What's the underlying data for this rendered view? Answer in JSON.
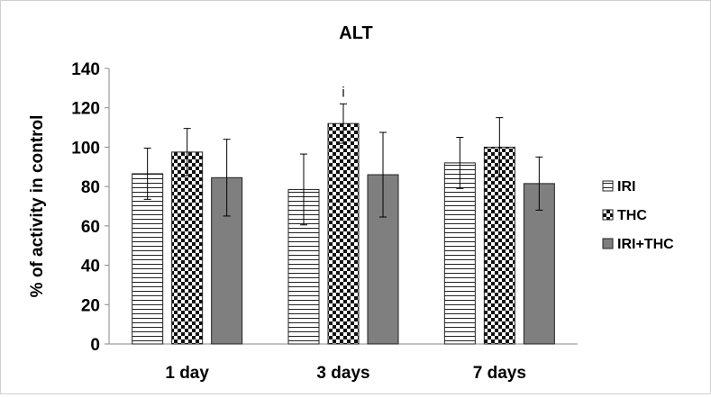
{
  "chart_data": {
    "type": "bar",
    "title": "ALT",
    "xlabel": "",
    "ylabel": "% of activity in control",
    "categories": [
      "1 day",
      "3 days",
      "7 days"
    ],
    "ylim": [
      0,
      140
    ],
    "yticks": [
      0,
      20,
      40,
      60,
      80,
      100,
      120,
      140
    ],
    "grid": false,
    "legend_position": "right",
    "series": [
      {
        "name": "IRI",
        "pattern": "horizontal-lines",
        "color": "#ffffff",
        "values": [
          86.5,
          78.5,
          92
        ],
        "errors": [
          13,
          18,
          13
        ]
      },
      {
        "name": "THC",
        "pattern": "checkerboard",
        "color": "#111111",
        "values": [
          97.5,
          112,
          100
        ],
        "errors": [
          12,
          10,
          15
        ]
      },
      {
        "name": "IRI+THC",
        "pattern": "solid",
        "color": "#7f7f7f",
        "values": [
          84.5,
          86,
          81.5
        ],
        "errors": [
          19.5,
          21.5,
          13.5
        ]
      }
    ],
    "annotations": [
      {
        "text": "i",
        "category": "3 days",
        "series": "THC"
      }
    ]
  }
}
